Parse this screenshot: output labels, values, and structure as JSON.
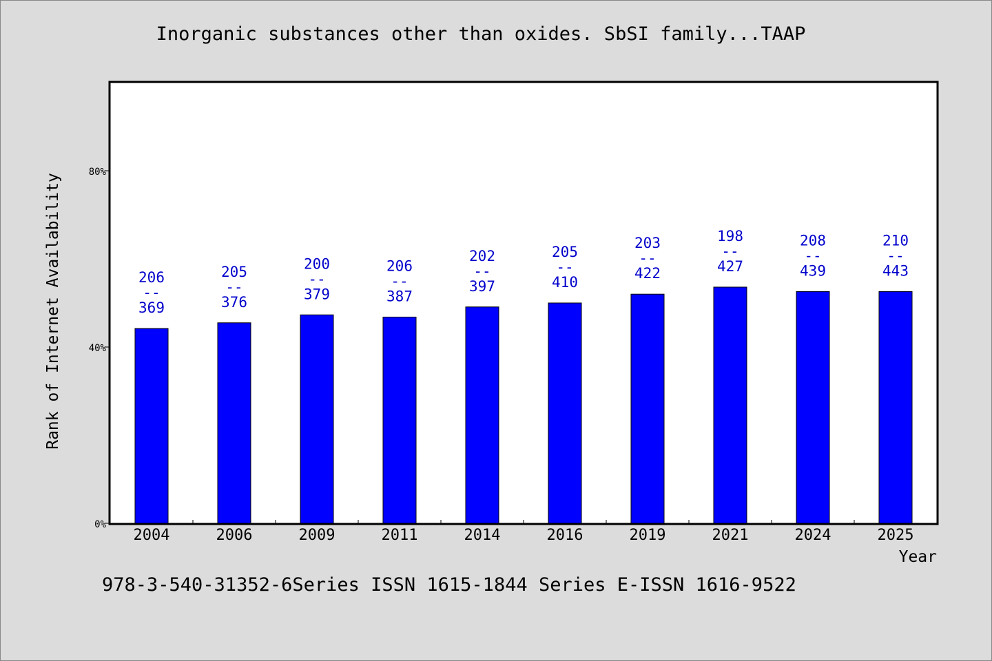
{
  "chart_data": {
    "type": "bar",
    "title": "Inorganic substances other than oxides. SbSI family...TAAP",
    "xlabel": "Year",
    "ylabel": "Rank of Internet Availability",
    "ylim": [
      0,
      100
    ],
    "yticks": [
      {
        "value": 0,
        "label": "0%"
      },
      {
        "value": 40,
        "label": "40%"
      },
      {
        "value": 80,
        "label": "80%"
      }
    ],
    "categories": [
      "2004",
      "2006",
      "2009",
      "2011",
      "2014",
      "2016",
      "2019",
      "2021",
      "2024",
      "2025"
    ],
    "values": [
      44.2,
      45.5,
      47.3,
      46.8,
      49.1,
      50.0,
      52.0,
      53.6,
      52.6,
      52.6
    ],
    "rank_labels": [
      {
        "rank": "206",
        "sep": "--",
        "total": "369"
      },
      {
        "rank": "205",
        "sep": "--",
        "total": "376"
      },
      {
        "rank": "200",
        "sep": "--",
        "total": "379"
      },
      {
        "rank": "206",
        "sep": "--",
        "total": "387"
      },
      {
        "rank": "202",
        "sep": "--",
        "total": "397"
      },
      {
        "rank": "205",
        "sep": "--",
        "total": "410"
      },
      {
        "rank": "203",
        "sep": "--",
        "total": "422"
      },
      {
        "rank": "198",
        "sep": "--",
        "total": "427"
      },
      {
        "rank": "208",
        "sep": "--",
        "total": "439"
      },
      {
        "rank": "210",
        "sep": "--",
        "total": "443"
      }
    ],
    "grid": false,
    "legend": "none",
    "colors": {
      "bar": "#0000ff",
      "bar_label": "#0000cc",
      "background": "#dcdcdc",
      "plot": "#ffffff"
    }
  },
  "footer": "978-3-540-31352-6Series ISSN 1615-1844 Series E-ISSN 1616-9522"
}
